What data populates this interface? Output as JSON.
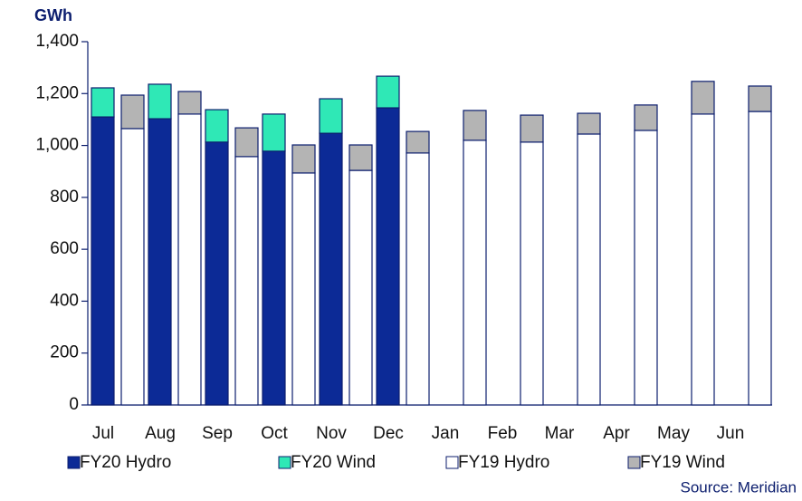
{
  "chart_data": {
    "type": "bar",
    "y_label": "GWh",
    "source": "Source: Meridian",
    "categories": [
      "Jul",
      "Aug",
      "Sep",
      "Oct",
      "Nov",
      "Dec",
      "Jan",
      "Feb",
      "Mar",
      "Apr",
      "May",
      "Jun"
    ],
    "series": [
      {
        "name": "FY20 Hydro",
        "color": "#0c2a96",
        "values": [
          1110,
          1103,
          1013,
          978,
          1047,
          1145,
          null,
          null,
          null,
          null,
          null,
          null
        ]
      },
      {
        "name": "FY20 Wind",
        "color": "#2fe8b6",
        "values": [
          112,
          133,
          125,
          143,
          133,
          122,
          null,
          null,
          null,
          null,
          null,
          null
        ]
      },
      {
        "name": "FY19 Hydro",
        "color": "#ffffff",
        "values": [
          1065,
          1121,
          957,
          894,
          904,
          971,
          1020,
          1013,
          1044,
          1058,
          1121,
          1131
        ]
      },
      {
        "name": "FY19 Wind",
        "color": "#b4b4b4",
        "values": [
          129,
          87,
          111,
          108,
          98,
          83,
          115,
          104,
          80,
          98,
          126,
          98
        ]
      }
    ],
    "ylim": [
      0,
      1400
    ],
    "yticks": [
      0,
      200,
      400,
      600,
      800,
      {
        "value": 1000,
        "label": "1,000"
      },
      {
        "value": 1200,
        "label": "1,200"
      },
      {
        "value": 1400,
        "label": "1,400"
      }
    ],
    "grid": false
  }
}
